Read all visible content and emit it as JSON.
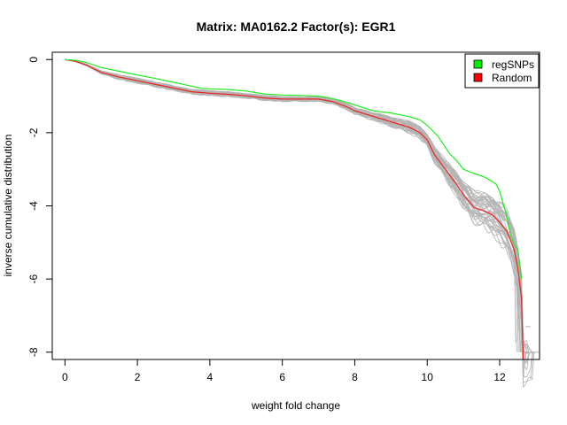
{
  "chart_data": {
    "type": "line",
    "title": "Matrix: MA0162.2 Factor(s): EGR1",
    "xlabel": "weight fold change",
    "ylabel": "inverse cumulative distribution",
    "xlim": [
      -0.35,
      13.1
    ],
    "ylim": [
      -8.2,
      0.2
    ],
    "x_ticks": [
      0,
      2,
      4,
      6,
      8,
      10,
      12
    ],
    "y_ticks": [
      0,
      -2,
      -4,
      -6,
      -8
    ],
    "grid": false,
    "legend_position": "top-right",
    "legend": [
      {
        "label": "regSNPs",
        "color": "#00ee00"
      },
      {
        "label": "Random",
        "color": "#ff0000"
      }
    ],
    "colors": {
      "regsnps": "#22ee22",
      "random": "#ee2222",
      "random_samples": "#b4b4b4"
    },
    "series": [
      {
        "name": "regSNPs",
        "color": "#22ee22",
        "x": [
          0,
          0.3,
          0.6,
          1.0,
          1.5,
          2.0,
          2.5,
          3.0,
          3.5,
          3.8,
          4.0,
          4.5,
          5.0,
          5.5,
          6.0,
          6.5,
          7.0,
          7.3,
          7.6,
          8.0,
          8.5,
          9.0,
          9.5,
          9.8,
          10.0,
          10.3,
          10.6,
          10.8,
          11.0,
          11.3,
          11.6,
          11.9,
          12.0,
          12.2,
          12.3,
          12.4,
          12.5,
          12.55,
          12.6
        ],
        "y": [
          0,
          -0.02,
          -0.08,
          -0.22,
          -0.32,
          -0.42,
          -0.52,
          -0.62,
          -0.73,
          -0.79,
          -0.8,
          -0.82,
          -0.86,
          -0.94,
          -0.97,
          -0.98,
          -1.0,
          -1.05,
          -1.12,
          -1.24,
          -1.4,
          -1.46,
          -1.56,
          -1.65,
          -1.8,
          -2.1,
          -2.55,
          -2.75,
          -3.0,
          -3.12,
          -3.22,
          -3.4,
          -3.6,
          -4.3,
          -4.8,
          -5.05,
          -5.2,
          -5.6,
          -6.0
        ]
      },
      {
        "name": "Random",
        "color": "#ee2222",
        "x": [
          0,
          0.3,
          0.6,
          1.0,
          1.5,
          2.0,
          2.5,
          3.0,
          3.5,
          4.0,
          4.5,
          5.0,
          5.5,
          6.0,
          6.5,
          7.0,
          7.4,
          7.8,
          8.0,
          8.5,
          9.0,
          9.5,
          9.8,
          10.0,
          10.2,
          10.5,
          10.8,
          11.0,
          11.3,
          11.6,
          11.8,
          12.0,
          12.2,
          12.4,
          12.5,
          12.6,
          12.65
        ],
        "y": [
          0,
          -0.05,
          -0.15,
          -0.35,
          -0.48,
          -0.58,
          -0.68,
          -0.78,
          -0.88,
          -0.92,
          -0.95,
          -0.99,
          -1.05,
          -1.08,
          -1.08,
          -1.08,
          -1.15,
          -1.3,
          -1.4,
          -1.55,
          -1.7,
          -1.85,
          -2.0,
          -2.2,
          -2.6,
          -3.0,
          -3.4,
          -3.7,
          -4.05,
          -4.15,
          -4.25,
          -4.45,
          -4.7,
          -5.2,
          -5.7,
          -6.5,
          -8.3
        ]
      }
    ]
  }
}
